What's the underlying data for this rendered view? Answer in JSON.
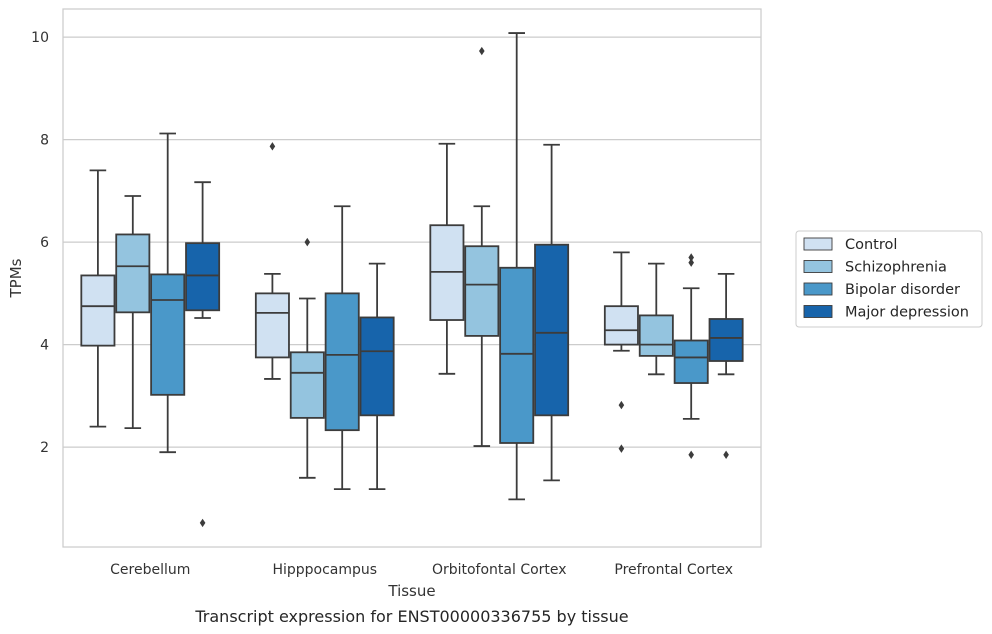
{
  "chart_data": {
    "type": "boxplot",
    "title": "Transcript expression for ENST00000336755 by tissue",
    "xlabel": "Tissue",
    "ylabel": "TPMs",
    "ylim": [
      0.05,
      10.55
    ],
    "yticks": [
      2,
      4,
      6,
      8,
      10
    ],
    "grid": "horizontal",
    "legend_position": "right",
    "categories": [
      "Cerebellum",
      "Hipppocampus",
      "Orbitofontal Cortex",
      "Prefrontal Cortex"
    ],
    "series": [
      {
        "name": "Control",
        "color": "#d0e1f2",
        "boxes": [
          {
            "whislo": 2.4,
            "q1": 3.98,
            "med": 4.75,
            "q3": 5.35,
            "whishi": 7.4,
            "fliers": []
          },
          {
            "whislo": 3.33,
            "q1": 3.75,
            "med": 4.62,
            "q3": 5.0,
            "whishi": 5.38,
            "fliers": [
              7.87
            ]
          },
          {
            "whislo": 3.43,
            "q1": 4.48,
            "med": 5.42,
            "q3": 6.33,
            "whishi": 7.92,
            "fliers": []
          },
          {
            "whislo": 3.88,
            "q1": 4.0,
            "med": 4.28,
            "q3": 4.75,
            "whishi": 5.8,
            "fliers": [
              2.82,
              1.97
            ]
          }
        ]
      },
      {
        "name": "Schizophrenia",
        "color": "#94c4df",
        "boxes": [
          {
            "whislo": 2.37,
            "q1": 4.63,
            "med": 5.53,
            "q3": 6.15,
            "whishi": 6.9,
            "fliers": []
          },
          {
            "whislo": 1.4,
            "q1": 2.57,
            "med": 3.45,
            "q3": 3.85,
            "whishi": 4.9,
            "fliers": [
              6.0
            ]
          },
          {
            "whislo": 2.02,
            "q1": 4.17,
            "med": 5.17,
            "q3": 5.92,
            "whishi": 6.7,
            "fliers": [
              9.73
            ]
          },
          {
            "whislo": 3.42,
            "q1": 3.78,
            "med": 4.0,
            "q3": 4.57,
            "whishi": 5.58,
            "fliers": []
          }
        ]
      },
      {
        "name": "Bipolar disorder",
        "color": "#4a98c9",
        "boxes": [
          {
            "whislo": 1.9,
            "q1": 3.02,
            "med": 4.87,
            "q3": 5.37,
            "whishi": 8.12,
            "fliers": []
          },
          {
            "whislo": 1.18,
            "q1": 2.33,
            "med": 3.8,
            "q3": 5.0,
            "whishi": 6.7,
            "fliers": []
          },
          {
            "whislo": 0.98,
            "q1": 2.08,
            "med": 3.82,
            "q3": 5.5,
            "whishi": 10.08,
            "fliers": []
          },
          {
            "whislo": 2.55,
            "q1": 3.25,
            "med": 3.75,
            "q3": 4.08,
            "whishi": 5.1,
            "fliers": [
              5.7,
              5.6,
              1.85
            ]
          }
        ]
      },
      {
        "name": "Major depression",
        "color": "#1764ab",
        "boxes": [
          {
            "whislo": 4.52,
            "q1": 4.67,
            "med": 5.35,
            "q3": 5.98,
            "whishi": 7.17,
            "fliers": [
              0.52
            ]
          },
          {
            "whislo": 1.18,
            "q1": 2.62,
            "med": 3.87,
            "q3": 4.53,
            "whishi": 5.58,
            "fliers": []
          },
          {
            "whislo": 1.35,
            "q1": 2.62,
            "med": 4.23,
            "q3": 5.95,
            "whishi": 7.9,
            "fliers": []
          },
          {
            "whislo": 3.42,
            "q1": 3.68,
            "med": 4.13,
            "q3": 4.5,
            "whishi": 5.38,
            "fliers": [
              1.85
            ]
          }
        ]
      }
    ]
  }
}
